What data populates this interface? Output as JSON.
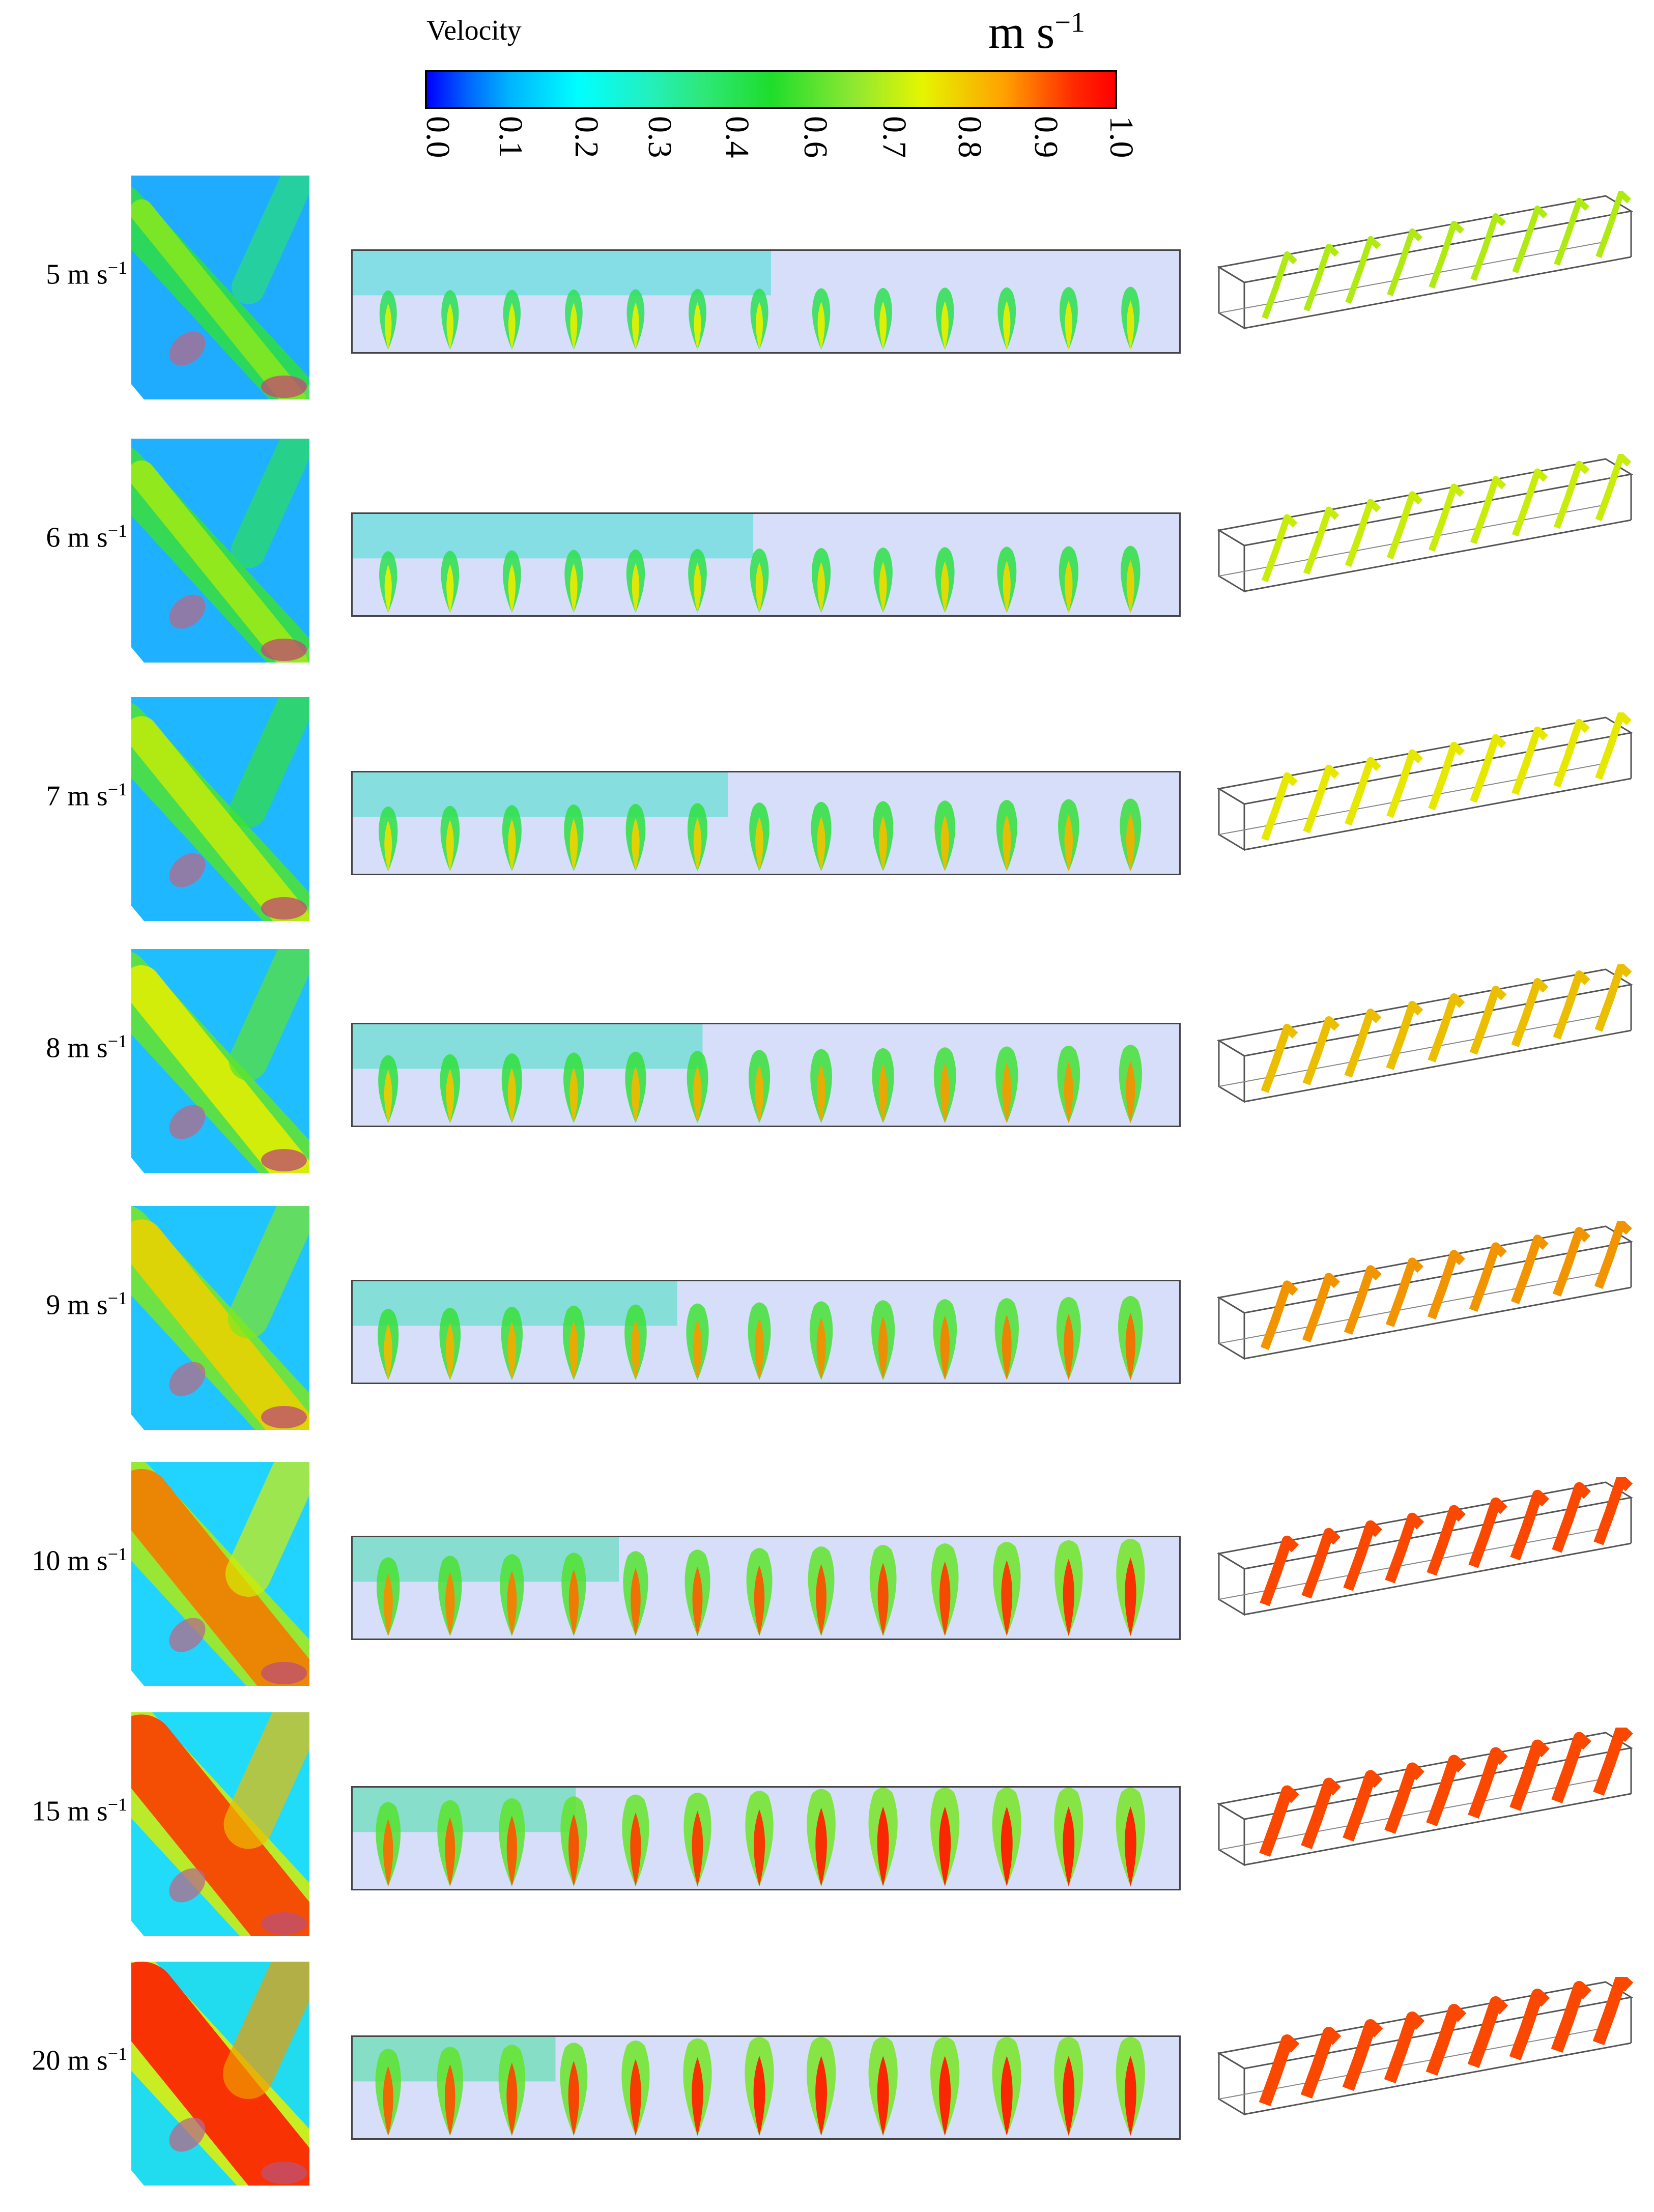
{
  "colorbar": {
    "title": "Velocity",
    "unit": "m s",
    "unit_exp": "−1",
    "ticks": [
      "0.0",
      "0.1",
      "0.2",
      "0.3",
      "0.4",
      "0.6",
      "0.7",
      "0.8",
      "0.9",
      "1.0"
    ]
  },
  "rows": [
    {
      "label": "5 m s",
      "exp": "−1",
      "intensity": 0.15
    },
    {
      "label": "6 m s",
      "exp": "−1",
      "intensity": 0.22
    },
    {
      "label": "7 m s",
      "exp": "−1",
      "intensity": 0.32
    },
    {
      "label": "8 m s",
      "exp": "−1",
      "intensity": 0.42
    },
    {
      "label": "9 m s",
      "exp": "−1",
      "intensity": 0.52
    },
    {
      "label": "10 m s",
      "exp": "−1",
      "intensity": 0.75
    },
    {
      "label": "15 m s",
      "exp": "−1",
      "intensity": 0.92
    },
    {
      "label": "20 m s",
      "exp": "−1",
      "intensity": 1.0
    }
  ],
  "colors": {
    "background": "#d6defa",
    "low": "#1e6cff",
    "cyan": "#20dcff",
    "green": "#2ee03c",
    "yellow": "#e6f000",
    "red": "#ff1e00"
  }
}
